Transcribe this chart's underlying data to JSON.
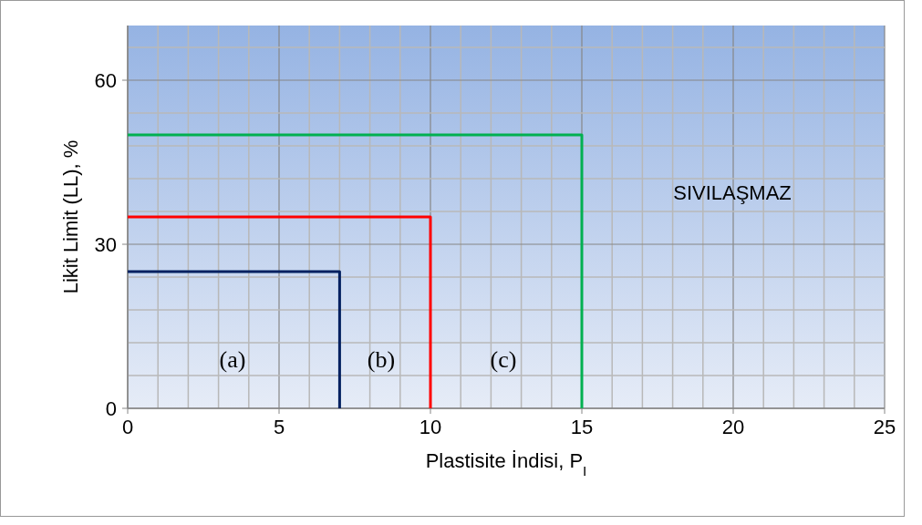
{
  "chart_data": {
    "type": "line",
    "xlabel": "Plastisite İndisi, P$_{I}$",
    "ylabel": "Likit Limit (LL), %",
    "xlim": [
      0,
      25
    ],
    "ylim": [
      0,
      70
    ],
    "xticks": [
      0,
      {
        "value": 1,
        "label": null
      },
      {
        "value": 2,
        "label": null
      },
      {
        "value": 3,
        "label": null
      },
      {
        "value": 4,
        "label": null
      },
      5,
      {
        "value": 6,
        "label": null
      },
      {
        "value": 7,
        "label": null
      },
      {
        "value": 8,
        "label": null
      },
      {
        "value": 9,
        "label": null
      },
      10,
      {
        "value": 11,
        "label": null
      },
      {
        "value": 12,
        "label": null
      },
      {
        "value": 13,
        "label": null
      },
      {
        "value": 14,
        "label": null
      },
      15,
      {
        "value": 16,
        "label": null
      },
      {
        "value": 17,
        "label": null
      },
      {
        "value": 18,
        "label": null
      },
      {
        "value": 19,
        "label": null
      },
      20,
      {
        "value": 21,
        "label": null
      },
      {
        "value": 22,
        "label": null
      },
      {
        "value": 23,
        "label": null
      },
      {
        "value": 24,
        "label": null
      },
      25
    ],
    "yticks": [
      0,
      {
        "value": 6,
        "label": null
      },
      {
        "value": 12,
        "label": null
      },
      {
        "value": 18,
        "label": null
      },
      {
        "value": 24,
        "label": null
      },
      30,
      {
        "value": 36,
        "label": null
      },
      {
        "value": 42,
        "label": null
      },
      {
        "value": 48,
        "label": null
      },
      {
        "value": 54,
        "label": null
      },
      60,
      {
        "value": 66,
        "label": null
      }
    ],
    "grid": true,
    "marker": "none",
    "line_style": "solid",
    "series": [
      {
        "color": "#002060",
        "x": [
          0,
          7,
          7
        ],
        "values": [
          25,
          25,
          0
        ]
      },
      {
        "color": "#ff0000",
        "x": [
          0,
          10,
          10
        ],
        "values": [
          35,
          35,
          0
        ]
      },
      {
        "color": "#00b050",
        "x": [
          0,
          15,
          15
        ],
        "values": [
          50,
          50,
          0
        ]
      }
    ],
    "annotations": [
      "(a)",
      "(b)",
      "(c)",
      "SIVILAŞMAZ"
    ]
  }
}
